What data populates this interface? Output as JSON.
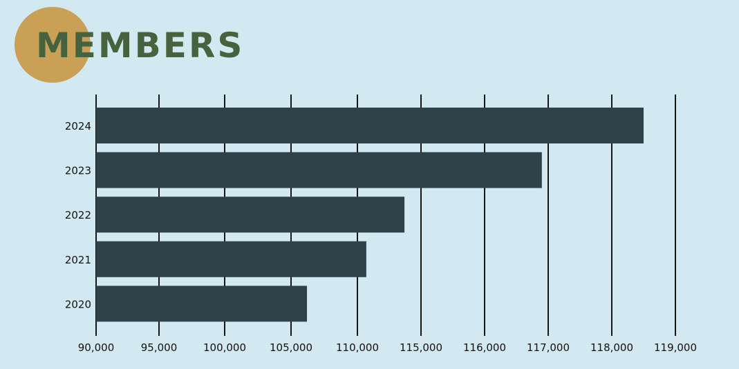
{
  "chart_data": {
    "type": "bar",
    "orientation": "horizontal",
    "title": "MEMBERS",
    "categories": [
      "2024",
      "2023",
      "2022",
      "2021",
      "2020"
    ],
    "values": [
      118500,
      116900,
      113700,
      110700,
      106200
    ],
    "x_ticks": [
      "90,000",
      "95,000",
      "100,000",
      "105,000",
      "110,000",
      "115,000",
      "116,000",
      "117,000",
      "118,000",
      "119,000"
    ],
    "grid": "vertical",
    "colors": {
      "background": "#d3e9f1",
      "bar": "#2f4249",
      "title": "#46623f",
      "title_badge": "#c9a055",
      "gridline": "#151515",
      "text": "#111111"
    }
  }
}
